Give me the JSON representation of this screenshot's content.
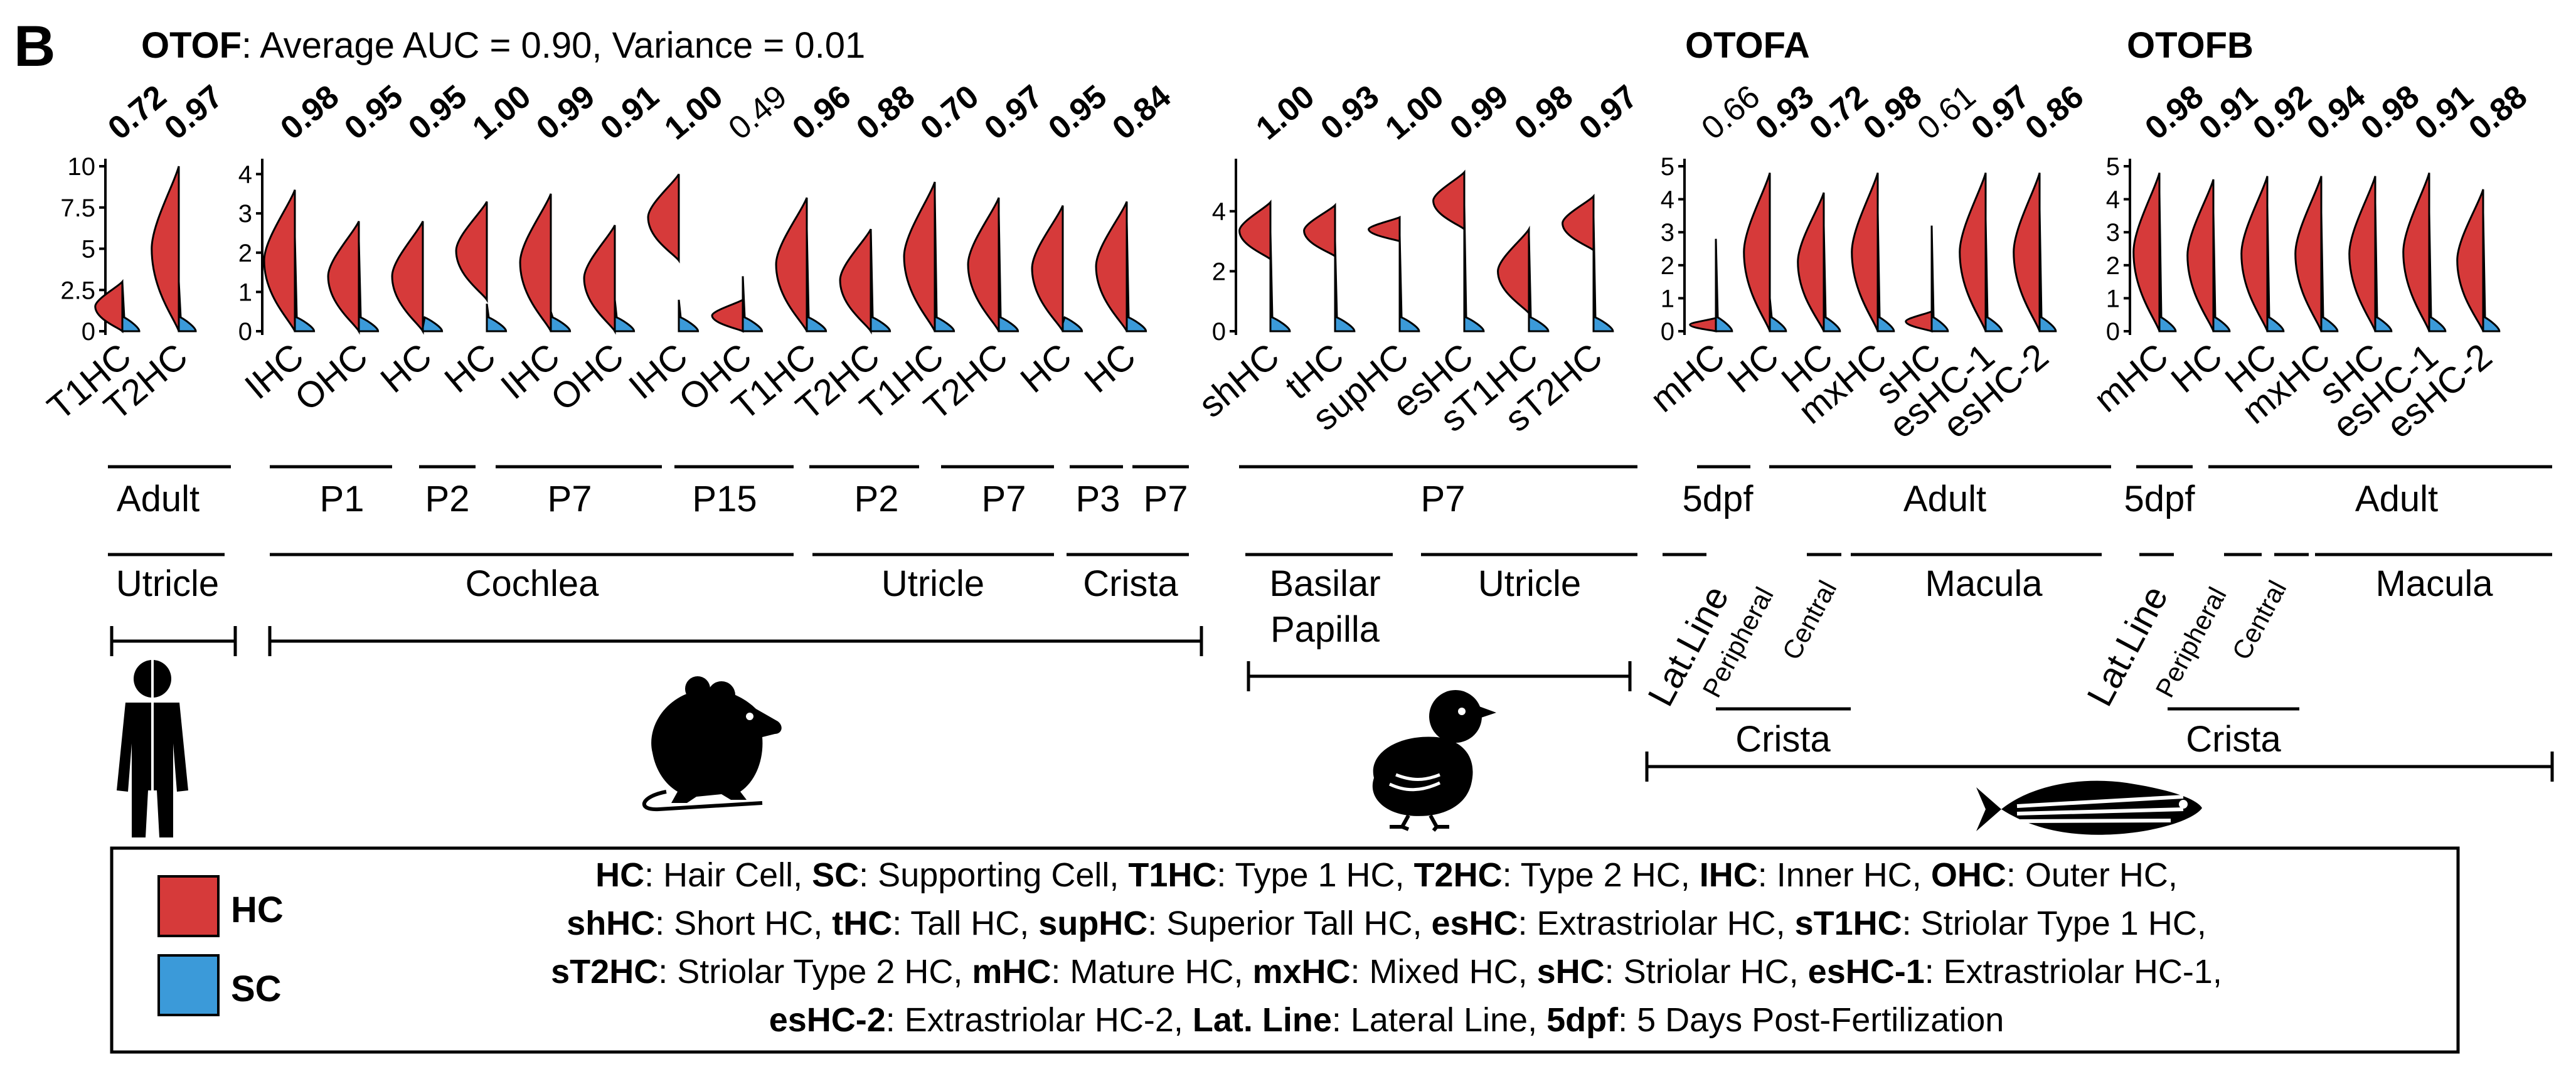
{
  "panel_letter": "B",
  "colors": {
    "hc": "#d63a3a",
    "sc": "#3b9ad9",
    "line": "#000000"
  },
  "chart_data": {
    "type": "violin",
    "title": ": Average AUC = 0.90, Variance = 0.01",
    "title_gene": "OTOF",
    "groups": [
      {
        "gene": "",
        "y_ticks": [
          "0",
          "2.5",
          "5",
          "7.5",
          "10"
        ],
        "ylim": [
          0,
          10
        ],
        "items": [
          {
            "label": "T1HC",
            "auc": "0.72",
            "bold": true,
            "hc": [
              0,
              3
            ],
            "sc": [
              0,
              3
            ]
          },
          {
            "label": "T2HC",
            "auc": "0.97",
            "bold": true,
            "hc": [
              0,
              10
            ],
            "sc": [
              0,
              3
            ]
          }
        ]
      },
      {
        "gene": "",
        "y_ticks": [
          "0",
          "1",
          "2",
          "3",
          "4"
        ],
        "ylim": [
          0,
          4.2
        ],
        "items": [
          {
            "label": "IHC",
            "auc": "0.98",
            "bold": true,
            "hc": [
              0,
              3.6
            ],
            "sc": [
              0,
              2.4
            ]
          },
          {
            "label": "OHC",
            "auc": "0.95",
            "bold": true,
            "hc": [
              0,
              2.8
            ],
            "sc": [
              0,
              2.3
            ]
          },
          {
            "label": "HC",
            "auc": "0.95",
            "bold": true,
            "hc": [
              0,
              2.8
            ],
            "sc": [
              0,
              0.1
            ]
          },
          {
            "label": "HC",
            "auc": "1.00",
            "bold": true,
            "hc": [
              0.8,
              3.3
            ],
            "sc": [
              0,
              0.7
            ]
          },
          {
            "label": "IHC",
            "auc": "0.99",
            "bold": true,
            "hc": [
              0,
              3.5
            ],
            "sc": [
              0,
              0.5
            ]
          },
          {
            "label": "OHC",
            "auc": "0.91",
            "bold": true,
            "hc": [
              0,
              2.7
            ],
            "sc": [
              0,
              0.8
            ]
          },
          {
            "label": "IHC",
            "auc": "1.00",
            "bold": true,
            "hc": [
              1.8,
              4.0
            ],
            "sc": [
              0,
              0.8
            ]
          },
          {
            "label": "OHC",
            "auc": "0.49",
            "bold": false,
            "hc": [
              0,
              0.8
            ],
            "sc": [
              0,
              1.4
            ]
          },
          {
            "label": "T1HC",
            "auc": "0.96",
            "bold": true,
            "hc": [
              0,
              3.4
            ],
            "sc": [
              0,
              2.6
            ]
          },
          {
            "label": "T2HC",
            "auc": "0.88",
            "bold": true,
            "hc": [
              0,
              2.6
            ],
            "sc": [
              0,
              2.6
            ]
          },
          {
            "label": "T1HC",
            "auc": "0.70",
            "bold": true,
            "hc": [
              0,
              3.8
            ],
            "sc": [
              0,
              3.5
            ]
          },
          {
            "label": "T2HC",
            "auc": "0.97",
            "bold": true,
            "hc": [
              0,
              3.4
            ],
            "sc": [
              0,
              3.0
            ]
          },
          {
            "label": "HC",
            "auc": "0.95",
            "bold": true,
            "hc": [
              0,
              3.2
            ],
            "sc": [
              0,
              0.2
            ]
          },
          {
            "label": "HC",
            "auc": "0.84",
            "bold": true,
            "hc": [
              0,
              3.3
            ],
            "sc": [
              0,
              2.8
            ]
          }
        ]
      },
      {
        "gene": "",
        "y_ticks": [
          "0",
          "2",
          "4"
        ],
        "ylim": [
          0,
          5.5
        ],
        "items": [
          {
            "label": "shHC",
            "auc": "1.00",
            "bold": true,
            "hc": [
              2.4,
              4.3
            ],
            "sc": [
              0,
              3.3
            ]
          },
          {
            "label": "tHC",
            "auc": "0.93",
            "bold": true,
            "hc": [
              2.5,
              4.2
            ],
            "sc": [
              0,
              3.0
            ]
          },
          {
            "label": "supHC",
            "auc": "1.00",
            "bold": true,
            "hc": [
              3.0,
              3.8
            ],
            "sc": [
              0,
              3.2
            ]
          },
          {
            "label": "esHC",
            "auc": "0.99",
            "bold": true,
            "hc": [
              3.4,
              5.3
            ],
            "sc": [
              0,
              4.2
            ]
          },
          {
            "label": "sT1HC",
            "auc": "0.98",
            "bold": true,
            "hc": [
              0.6,
              3.4
            ],
            "sc": [
              0,
              3.2
            ]
          },
          {
            "label": "sT2HC",
            "auc": "0.97",
            "bold": true,
            "hc": [
              2.7,
              4.5
            ],
            "sc": [
              0,
              3.8
            ]
          }
        ]
      },
      {
        "gene": "OTOFA",
        "y_ticks": [
          "0",
          "1",
          "2",
          "3",
          "4",
          "5"
        ],
        "ylim": [
          0,
          5
        ],
        "items": [
          {
            "label": "mHC",
            "auc": "0.66",
            "bold": false,
            "hc": [
              0,
              0.4
            ],
            "sc": [
              0,
              2.8
            ]
          },
          {
            "label": "HC",
            "auc": "0.93",
            "bold": true,
            "hc": [
              0,
              4.8
            ],
            "sc": [
              0,
              1.0
            ]
          },
          {
            "label": "HC",
            "auc": "0.72",
            "bold": true,
            "hc": [
              0,
              4.2
            ],
            "sc": [
              0,
              3.2
            ]
          },
          {
            "label": "mxHC",
            "auc": "0.98",
            "bold": true,
            "hc": [
              0,
              4.8
            ],
            "sc": [
              0,
              3.6
            ]
          },
          {
            "label": "sHC",
            "auc": "0.61",
            "bold": false,
            "hc": [
              0,
              0.6
            ],
            "sc": [
              0,
              3.2
            ]
          },
          {
            "label": "esHC-1",
            "auc": "0.97",
            "bold": true,
            "hc": [
              0,
              4.8
            ],
            "sc": [
              0,
              3.4
            ]
          },
          {
            "label": "esHC-2",
            "auc": "0.86",
            "bold": true,
            "hc": [
              0,
              4.8
            ],
            "sc": [
              0,
              3.7
            ]
          }
        ]
      },
      {
        "gene": "OTOFB",
        "y_ticks": [
          "0",
          "1",
          "2",
          "3",
          "4",
          "5"
        ],
        "ylim": [
          0,
          5
        ],
        "items": [
          {
            "label": "mHC",
            "auc": "0.98",
            "bold": true,
            "hc": [
              0,
              4.8
            ],
            "sc": [
              0,
              4.2
            ]
          },
          {
            "label": "HC",
            "auc": "0.91",
            "bold": true,
            "hc": [
              0,
              4.6
            ],
            "sc": [
              0,
              3.6
            ]
          },
          {
            "label": "HC",
            "auc": "0.92",
            "bold": true,
            "hc": [
              0,
              4.7
            ],
            "sc": [
              0,
              3.8
            ]
          },
          {
            "label": "mxHC",
            "auc": "0.94",
            "bold": true,
            "hc": [
              0,
              4.7
            ],
            "sc": [
              0,
              3.6
            ]
          },
          {
            "label": "sHC",
            "auc": "0.98",
            "bold": true,
            "hc": [
              0,
              4.7
            ],
            "sc": [
              0,
              3.9
            ]
          },
          {
            "label": "esHC-1",
            "auc": "0.91",
            "bold": true,
            "hc": [
              0,
              4.8
            ],
            "sc": [
              0,
              3.6
            ]
          },
          {
            "label": "esHC-2",
            "auc": "0.88",
            "bold": true,
            "hc": [
              0,
              4.3
            ],
            "sc": [
              0,
              3.6
            ]
          }
        ]
      }
    ],
    "age_labels": [
      "Adult",
      "P1",
      "P2",
      "P7",
      "P15",
      "P2",
      "P7",
      "P3",
      "P7",
      "P7",
      "5dpf",
      "Adult",
      "5dpf",
      "Adult"
    ],
    "organ_labels": [
      "Utricle",
      "Cochlea",
      "Utricle",
      "Crista",
      "Basilar",
      "Papilla",
      "Utricle",
      "Macula",
      "Macula"
    ],
    "rotated_labels": [
      "Lat.Line",
      "Peripheral",
      "Central",
      "Lat.Line",
      "Peripheral",
      "Central"
    ],
    "crista_labels": [
      "Crista",
      "Crista"
    ],
    "species": [
      "human-icon",
      "mouse-icon",
      "chick-icon",
      "zebrafish-icon"
    ],
    "legend": {
      "hc": "HC",
      "sc": "SC"
    }
  },
  "footnote": [
    [
      {
        "b": "HC"
      },
      {
        "t": ": Hair Cell, "
      },
      {
        "b": "SC"
      },
      {
        "t": ": Supporting Cell, "
      },
      {
        "b": "T1HC"
      },
      {
        "t": ": Type 1 HC, "
      },
      {
        "b": "T2HC"
      },
      {
        "t": ": Type 2 HC, "
      },
      {
        "b": "IHC"
      },
      {
        "t": ": Inner HC, "
      },
      {
        "b": "OHC"
      },
      {
        "t": ": Outer HC,"
      }
    ],
    [
      {
        "b": "shHC"
      },
      {
        "t": ": Short HC, "
      },
      {
        "b": "tHC"
      },
      {
        "t": ": Tall HC, "
      },
      {
        "b": "supHC"
      },
      {
        "t": ": Superior Tall HC, "
      },
      {
        "b": "esHC"
      },
      {
        "t": ": Extrastriolar HC, "
      },
      {
        "b": "sT1HC"
      },
      {
        "t": ": Striolar Type 1 HC,"
      }
    ],
    [
      {
        "b": "sT2HC"
      },
      {
        "t": ": Striolar Type 2 HC, "
      },
      {
        "b": "mHC"
      },
      {
        "t": ": Mature HC, "
      },
      {
        "b": "mxHC"
      },
      {
        "t": ": Mixed HC, "
      },
      {
        "b": "sHC"
      },
      {
        "t": ": Striolar HC, "
      },
      {
        "b": "esHC-1"
      },
      {
        "t": ": Extrastriolar HC-1,"
      }
    ],
    [
      {
        "b": "esHC-2"
      },
      {
        "t": ": Extrastriolar HC-2, "
      },
      {
        "b": "Lat. Line"
      },
      {
        "t": ": Lateral Line, "
      },
      {
        "b": "5dpf"
      },
      {
        "t": ": 5 Days Post-Fertilization"
      }
    ]
  ]
}
